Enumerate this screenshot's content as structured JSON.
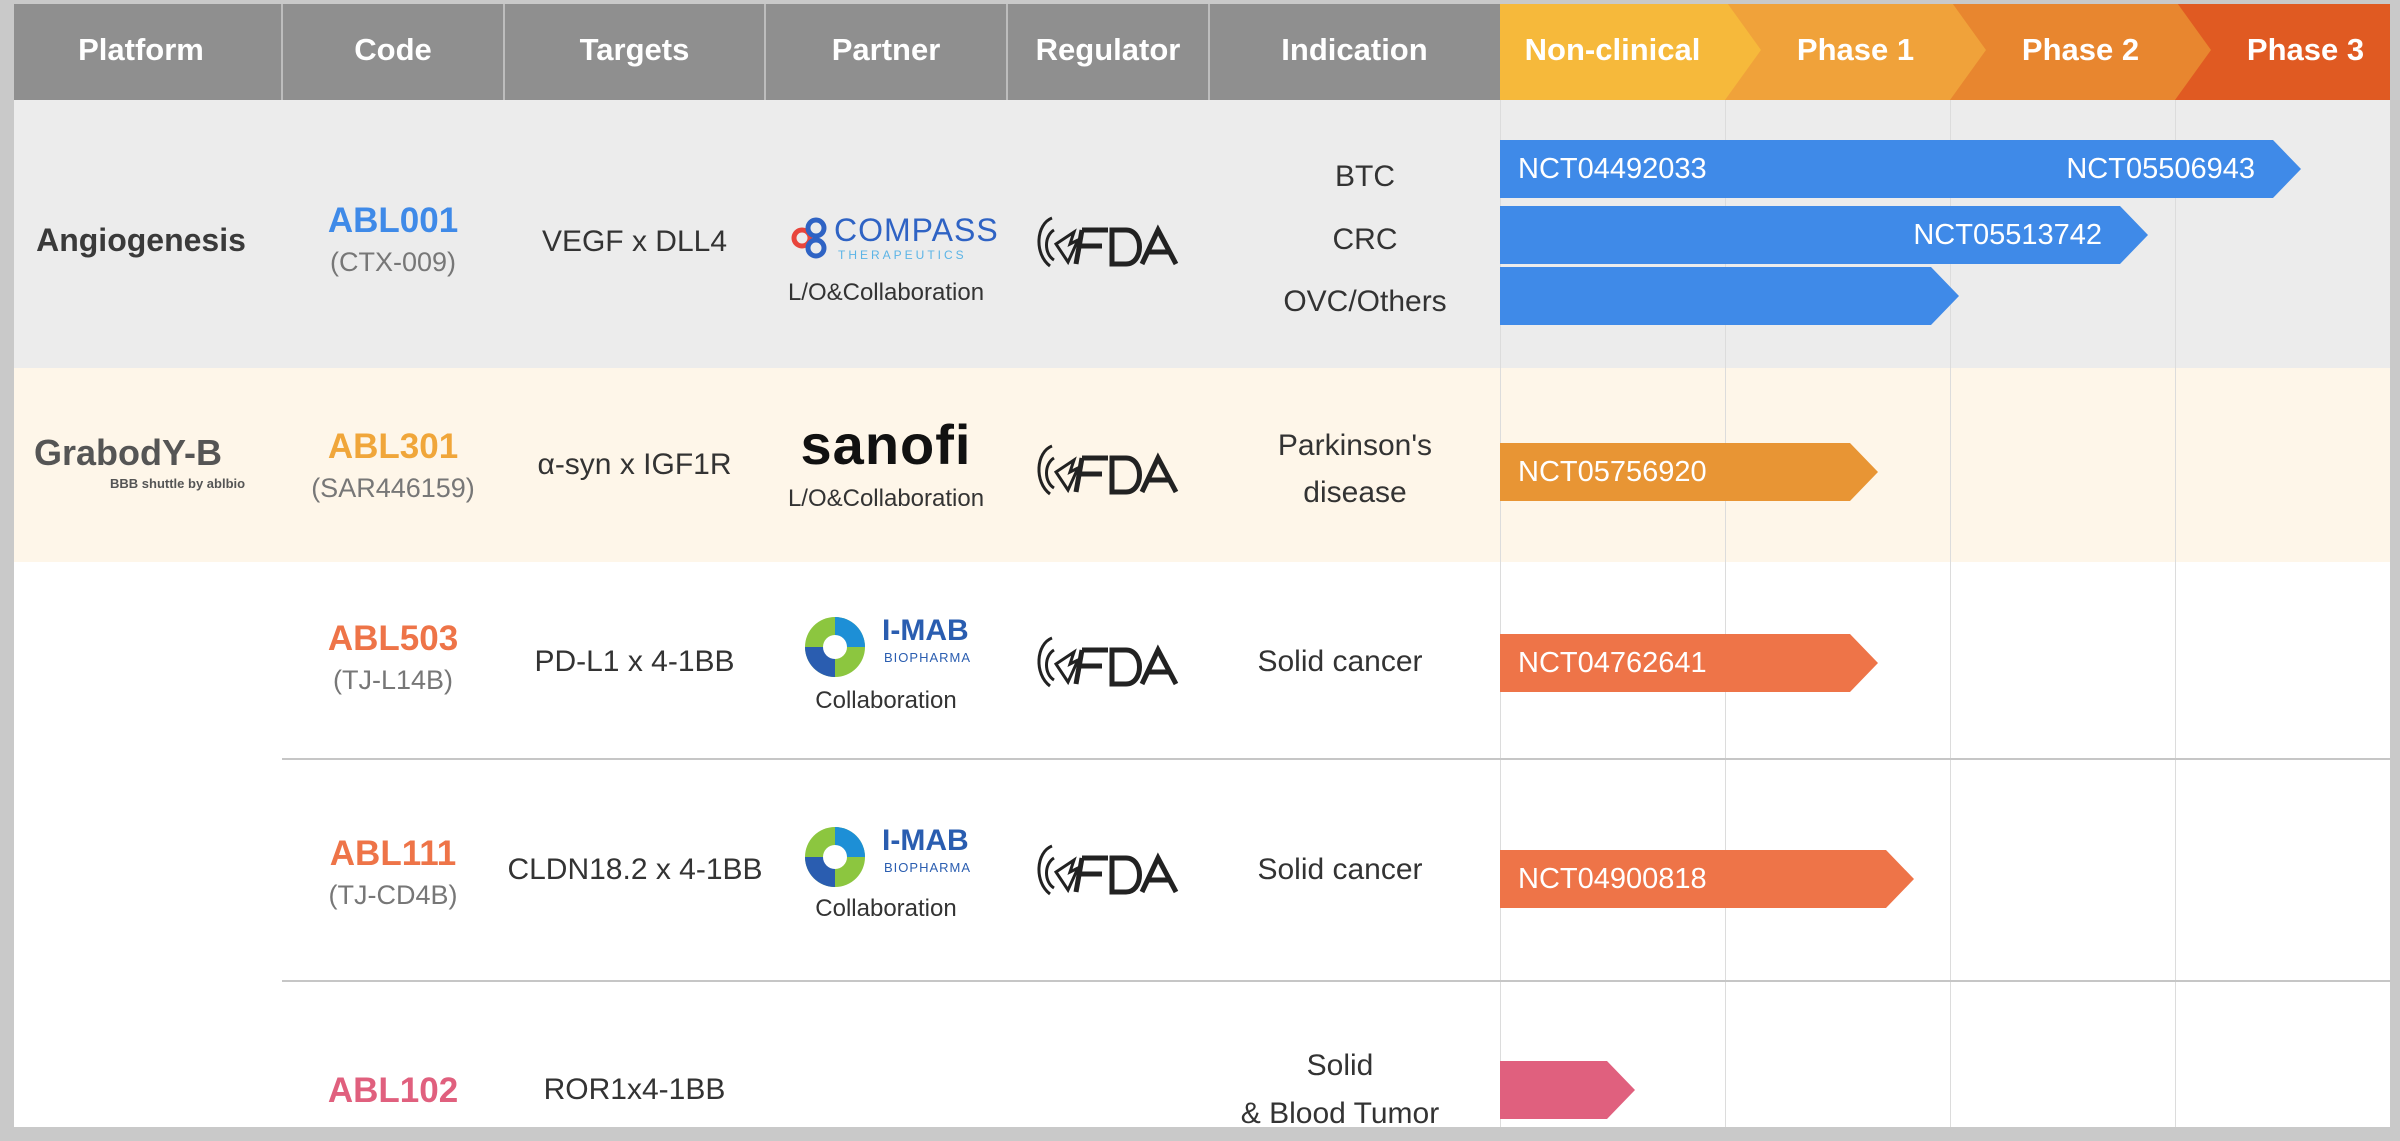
{
  "header": {
    "platform": "Platform",
    "code": "Code",
    "targets": "Targets",
    "partner": "Partner",
    "regulator": "Regulator",
    "indication": "Indication",
    "phases": [
      "Non-clinical",
      "Phase 1",
      "Phase 2",
      "Phase 3"
    ]
  },
  "colors": {
    "header_gray": "#8f8f8f",
    "phase_nonclinical": "#f6b93b",
    "phase_1": "#f0a23a",
    "phase_2": "#e8862f",
    "phase_3": "#e05a22",
    "blue": "#3f8ae8",
    "orange": "#e89534",
    "coral": "#ee7448",
    "pink": "#e0607e",
    "row1_bg": "#ececec",
    "row2_bg": "#fef6e9"
  },
  "rows": [
    {
      "platform": "Angiogenesis",
      "code": "ABL001",
      "alias": "(CTX-009)",
      "targets": "VEGF x DLL4",
      "partner_logo": "COMPASS",
      "partner_logo_sub": "THERAPEUTICS",
      "partner_caption": "L/O&Collaboration",
      "regulator": "FDA",
      "indications": [
        "BTC",
        "CRC",
        "OVC/Others"
      ],
      "trials": [
        {
          "labels": [
            "NCT04492033",
            "NCT05506943"
          ],
          "progress": 0.89,
          "color": "blue"
        },
        {
          "labels": [
            "NCT05513742"
          ],
          "progress": 0.72,
          "color": "blue"
        },
        {
          "labels": [
            ""
          ],
          "progress": 0.51,
          "color": "blue"
        }
      ]
    },
    {
      "platform_logo": "GrabodY-B",
      "platform_logo_tagline": "BBB shuttle by ablbio",
      "code": "ABL301",
      "alias": "(SAR446159)",
      "targets": "α-syn x IGF1R",
      "partner_logo": "sanofi",
      "partner_caption": "L/O&Collaboration",
      "regulator": "FDA",
      "indications": [
        "Parkinson's",
        "disease"
      ],
      "trials": [
        {
          "labels": [
            "NCT05756920"
          ],
          "progress": 0.42,
          "color": "orange"
        }
      ]
    },
    {
      "code": "ABL503",
      "alias": "(TJ-L14B)",
      "targets": "PD-L1 x 4-1BB",
      "partner_logo": "I-MAB",
      "partner_logo_sub": "BIOPHARMA",
      "partner_caption": "Collaboration",
      "regulator": "FDA",
      "indications": [
        "Solid cancer"
      ],
      "trials": [
        {
          "labels": [
            "NCT04762641"
          ],
          "progress": 0.42,
          "color": "coral"
        }
      ]
    },
    {
      "code": "ABL111",
      "alias": "(TJ-CD4B)",
      "targets": "CLDN18.2 x 4-1BB",
      "partner_logo": "I-MAB",
      "partner_logo_sub": "BIOPHARMA",
      "partner_caption": "Collaboration",
      "regulator": "FDA",
      "indications": [
        "Solid cancer"
      ],
      "trials": [
        {
          "labels": [
            "NCT04900818"
          ],
          "progress": 0.46,
          "color": "coral"
        }
      ]
    },
    {
      "code": "ABL102",
      "targets": "ROR1x4-1BB",
      "indications": [
        "Solid",
        "& Blood Tumor"
      ],
      "trials": [
        {
          "labels": [
            ""
          ],
          "progress": 0.15,
          "color": "pink"
        }
      ]
    }
  ]
}
